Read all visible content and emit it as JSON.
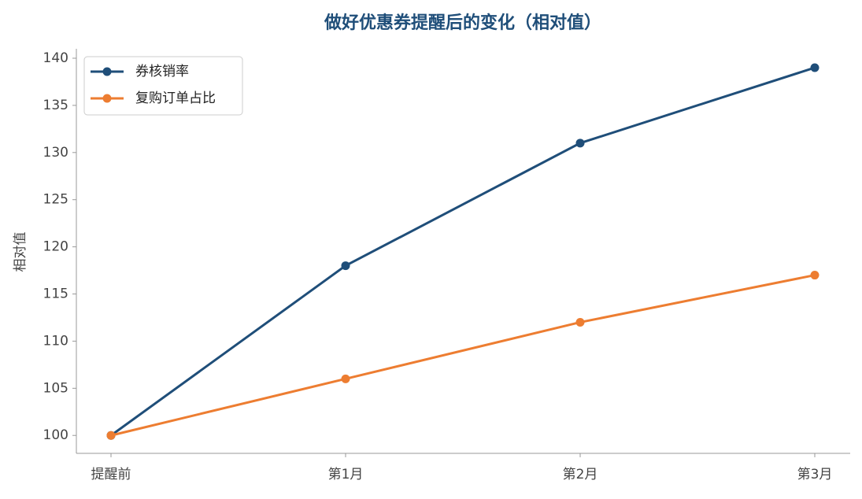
{
  "chart_data": {
    "type": "line",
    "title": "做好优惠券提醒后的变化（相对值）",
    "y_label": "相对值",
    "categories": [
      "提醒前",
      "第1月",
      "第2月",
      "第3月"
    ],
    "series": [
      {
        "name": "券核销率",
        "color": "#1f4e79",
        "values": [
          100,
          118,
          131,
          139
        ]
      },
      {
        "name": "复购订单占比",
        "color": "#ed7d31",
        "values": [
          100,
          106,
          112,
          117
        ]
      }
    ],
    "ylim": [
      98.1,
      141
    ],
    "yticks": [
      100,
      105,
      110,
      115,
      120,
      125,
      130,
      135,
      140
    ],
    "grid": false,
    "legend": "upper left"
  }
}
